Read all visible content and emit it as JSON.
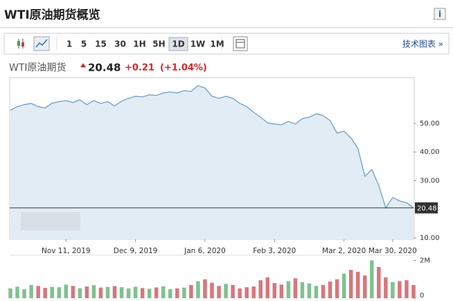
{
  "header": {
    "title": "WTI原油期货概览",
    "info": "i"
  },
  "toolbar": {
    "intervals": [
      "1",
      "5",
      "15",
      "30",
      "1H",
      "5H",
      "1D",
      "1W",
      "1M"
    ],
    "active": "1D",
    "link": "技术图表 »"
  },
  "quote": {
    "name": "WTI原油期货",
    "price": 20.48,
    "change": "+0.21",
    "change_pct": "(+1.04%)"
  },
  "chart_data": {
    "type": "area",
    "categories": [
      null,
      null,
      null,
      null,
      null,
      null,
      null,
      null,
      "Nov 11, 2019",
      null,
      null,
      null,
      null,
      null,
      null,
      null,
      null,
      null,
      "Dec 9, 2019",
      null,
      null,
      null,
      null,
      null,
      null,
      null,
      null,
      null,
      "Jan 6, 2020",
      null,
      null,
      null,
      null,
      null,
      null,
      null,
      null,
      null,
      "Feb 3, 2020",
      null,
      null,
      null,
      null,
      null,
      null,
      null,
      null,
      null,
      "Mar 2, 2020",
      null,
      null,
      null,
      null,
      null,
      null,
      "Mar 30, 2020",
      null,
      null,
      null
    ],
    "series": [
      {
        "color": "#6f9fc9",
        "fill": "#e2ecf4",
        "values": [
          54.6,
          55.9,
          56.6,
          57,
          55.9,
          55.4,
          57.1,
          57.6,
          58,
          57.3,
          58.3,
          56.6,
          58,
          57,
          57.6,
          56.1,
          57.8,
          58.8,
          59.5,
          59.3,
          60,
          59.8,
          60.7,
          61,
          60.7,
          61.5,
          61.2,
          63.2,
          62.4,
          59.5,
          58.8,
          59.5,
          58.8,
          57,
          55.9,
          53.9,
          52.2,
          50.2,
          49.8,
          49.5,
          50.7,
          49.8,
          51.7,
          52.2,
          53.4,
          52.7,
          51,
          46.6,
          47.3,
          44.9,
          41.3,
          31.5,
          33.9,
          28.3,
          20.5,
          24.1,
          22.9,
          22.3,
          20.48
        ]
      },
      {
        "axis": "y2",
        "up_color": "#7fc28f",
        "down_color": "#d8767c",
        "values": [
          520000,
          610000,
          480000,
          700000,
          650000,
          550000,
          600000,
          580000,
          720000,
          650000,
          530000,
          620000,
          690000,
          560000,
          600000,
          640000,
          580000,
          520000,
          610000,
          540000,
          500000,
          570000,
          630000,
          480000,
          520000,
          560000,
          700000,
          900000,
          1000000,
          820000,
          650000,
          760000,
          700000,
          520000,
          580000,
          620000,
          950000,
          1100000,
          800000,
          720000,
          900000,
          1050000,
          850000,
          780000,
          650000,
          700000,
          880000,
          1000000,
          1300000,
          1500000,
          1400000,
          1200000,
          2000000,
          1650000,
          1100000,
          850000,
          900000,
          950000,
          700000
        ]
      }
    ],
    "ylim": [
      9.5,
      66
    ],
    "yticks": [
      {
        "value": 10,
        "label": "10.00"
      },
      {
        "value": 30,
        "label": "30.00"
      },
      {
        "value": 40,
        "label": "40.00"
      },
      {
        "value": 50,
        "label": "50.00"
      }
    ],
    "y2lim": [
      0,
      2200000
    ],
    "y2ticks": [
      0,
      {
        "value": 2000000,
        "label": "2M"
      }
    ]
  }
}
